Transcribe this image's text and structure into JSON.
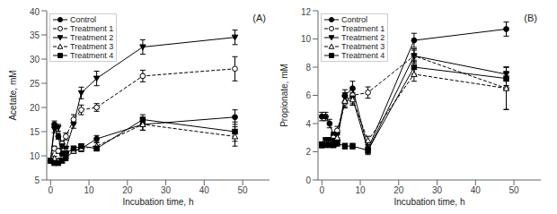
{
  "chart_data": [
    {
      "type": "line",
      "title": "(A)",
      "x_label": "Incubation time, h",
      "y_label": "Acetate, mM",
      "xlim": [
        -1,
        57
      ],
      "ylim": [
        5,
        40
      ],
      "xticks": [
        0,
        10,
        20,
        30,
        40,
        50
      ],
      "yticks": [
        5,
        10,
        15,
        20,
        25,
        30,
        35,
        40
      ],
      "grid": false,
      "legend": "upper left",
      "series": [
        {
          "name": "Control",
          "color": "black",
          "marker": "circle",
          "line_style": "solid",
          "x": [
            0,
            1,
            2,
            3,
            4,
            6,
            8,
            12,
            24,
            48
          ],
          "values": [
            9.0,
            16.5,
            14.0,
            10.5,
            9.5,
            11.0,
            11.5,
            13.5,
            16.5,
            18.0
          ],
          "error": [
            0.4,
            0.7,
            0.6,
            0.5,
            0.5,
            0.5,
            0.6,
            0.7,
            1.2,
            1.5
          ]
        },
        {
          "name": "Treatment 1",
          "color": "black",
          "marker": "circle_open",
          "line_style": "dashed",
          "x": [
            0,
            1,
            2,
            3,
            4,
            6,
            8,
            12,
            24,
            48
          ],
          "values": [
            9.0,
            11.5,
            11.0,
            12.5,
            14.0,
            17.5,
            19.5,
            20.0,
            26.5,
            28.0
          ],
          "error": [
            0.4,
            0.5,
            0.5,
            0.6,
            0.7,
            1.0,
            1.0,
            0.8,
            1.2,
            2.5
          ]
        },
        {
          "name": "Treatment 2",
          "color": "black",
          "marker": "triangle_down",
          "line_style": "solid",
          "x": [
            0,
            1,
            2,
            3,
            4,
            6,
            8,
            12,
            24,
            48
          ],
          "values": [
            9.0,
            15.5,
            15.8,
            12.0,
            11.5,
            16.5,
            23.0,
            26.0,
            32.5,
            34.5
          ],
          "error": [
            0.4,
            0.7,
            0.7,
            0.5,
            0.5,
            0.8,
            1.2,
            1.5,
            1.5,
            1.5
          ]
        },
        {
          "name": "Treatment 3",
          "color": "black",
          "marker": "triangle_up_open",
          "line_style": "dashed",
          "x": [
            0,
            1,
            2,
            3,
            4,
            6,
            8,
            12,
            24,
            48
          ],
          "values": [
            9.0,
            9.5,
            9.0,
            9.5,
            11.0,
            11.0,
            11.5,
            12.0,
            16.5,
            14.0
          ],
          "error": [
            0.4,
            0.4,
            0.4,
            0.5,
            0.5,
            0.5,
            0.6,
            0.7,
            1.2,
            2.0
          ]
        },
        {
          "name": "Treatment 4",
          "color": "black",
          "marker": "square",
          "line_style": "solid",
          "x": [
            0,
            1,
            2,
            3,
            4,
            6,
            8,
            12,
            24,
            48
          ],
          "values": [
            9.0,
            8.5,
            8.5,
            9.0,
            10.5,
            11.5,
            12.0,
            11.5,
            17.5,
            15.0
          ],
          "error": [
            0.4,
            0.4,
            0.4,
            0.5,
            0.5,
            0.5,
            0.5,
            0.5,
            1.0,
            2.0
          ]
        }
      ]
    },
    {
      "type": "line",
      "title": "(B)",
      "x_label": "Incubation time, h",
      "y_label": "Propionate, mM",
      "xlim": [
        -1,
        57
      ],
      "ylim": [
        0,
        12
      ],
      "xticks": [
        0,
        10,
        20,
        30,
        40,
        50
      ],
      "yticks": [
        0,
        2,
        4,
        6,
        8,
        10,
        12
      ],
      "grid": false,
      "legend": "upper left",
      "series": [
        {
          "name": "Control",
          "color": "black",
          "marker": "circle",
          "line_style": "solid",
          "x": [
            0,
            1,
            2,
            3,
            4,
            6,
            8,
            12,
            24,
            48
          ],
          "values": [
            4.5,
            4.5,
            4.0,
            3.2,
            2.8,
            6.0,
            6.5,
            2.2,
            9.9,
            10.7
          ],
          "error": [
            0.3,
            0.3,
            0.3,
            0.2,
            0.2,
            0.4,
            0.5,
            0.3,
            0.5,
            0.5
          ]
        },
        {
          "name": "Treatment 1",
          "color": "black",
          "marker": "circle_open",
          "line_style": "dashed",
          "x": [
            0,
            1,
            2,
            3,
            4,
            6,
            8,
            12,
            24,
            48
          ],
          "values": [
            2.5,
            2.8,
            2.8,
            3.0,
            3.5,
            5.5,
            6.0,
            6.2,
            8.8,
            6.5
          ],
          "error": [
            0.2,
            0.2,
            0.2,
            0.2,
            0.3,
            0.4,
            0.4,
            0.4,
            0.4,
            1.5
          ]
        },
        {
          "name": "Treatment 2",
          "color": "black",
          "marker": "triangle_down",
          "line_style": "solid",
          "x": [
            0,
            1,
            2,
            3,
            4,
            6,
            8,
            12,
            24,
            48
          ],
          "values": [
            2.5,
            2.8,
            2.8,
            2.8,
            3.2,
            5.8,
            5.8,
            2.1,
            8.8,
            7.5
          ],
          "error": [
            0.2,
            0.2,
            0.2,
            0.2,
            0.3,
            0.4,
            0.4,
            0.3,
            0.5,
            0.5
          ]
        },
        {
          "name": "Treatment 3",
          "color": "black",
          "marker": "triangle_up_open",
          "line_style": "dashed",
          "x": [
            0,
            1,
            2,
            3,
            4,
            6,
            8,
            12,
            24,
            48
          ],
          "values": [
            2.5,
            2.6,
            2.6,
            2.5,
            3.0,
            5.6,
            5.7,
            2.8,
            7.5,
            6.5
          ],
          "error": [
            0.2,
            0.2,
            0.2,
            0.2,
            0.2,
            0.4,
            0.4,
            0.3,
            0.5,
            1.5
          ]
        },
        {
          "name": "Treatment 4",
          "color": "black",
          "marker": "square",
          "line_style": "solid",
          "x": [
            0,
            1,
            2,
            3,
            4,
            6,
            8,
            12,
            24,
            48
          ],
          "values": [
            2.5,
            2.5,
            2.5,
            2.5,
            2.6,
            2.4,
            2.4,
            2.1,
            8.0,
            7.2
          ],
          "error": [
            0.2,
            0.2,
            0.2,
            0.2,
            0.2,
            0.2,
            0.2,
            0.2,
            0.5,
            0.5
          ]
        }
      ]
    }
  ]
}
